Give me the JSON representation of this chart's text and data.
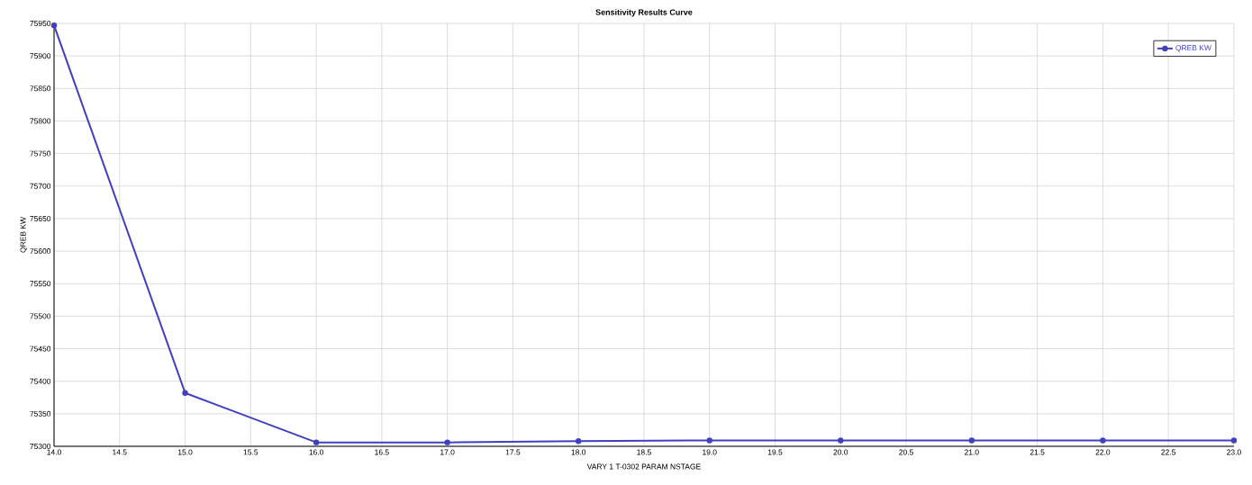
{
  "chart_data": {
    "type": "line",
    "title": "Sensitivity Results Curve",
    "xlabel": "VARY   1 T-0302 PARAM NSTAGE",
    "ylabel": "QREB KW",
    "x": [
      14,
      15,
      16,
      17,
      18,
      19,
      20,
      21,
      22,
      23
    ],
    "series": [
      {
        "name": "QREB KW",
        "color": "#4040c0",
        "values": [
          75947,
          75382,
          75306,
          75306,
          75308,
          75309,
          75309,
          75309,
          75309,
          75309
        ]
      }
    ],
    "xlim": [
      14,
      23
    ],
    "ylim": [
      75300,
      75950
    ],
    "xticks": [
      {
        "value": 14,
        "label": "14.0"
      },
      {
        "value": 14.5,
        "label": "14.5"
      },
      {
        "value": 15,
        "label": "15.0"
      },
      {
        "value": 15.5,
        "label": "15.5"
      },
      {
        "value": 16,
        "label": "16.0"
      },
      {
        "value": 16.5,
        "label": "16.5"
      },
      {
        "value": 17,
        "label": "17.0"
      },
      {
        "value": 17.5,
        "label": "17.5"
      },
      {
        "value": 18,
        "label": "18.0"
      },
      {
        "value": 18.5,
        "label": "18.5"
      },
      {
        "value": 19,
        "label": "19.0"
      },
      {
        "value": 19.5,
        "label": "19.5"
      },
      {
        "value": 20,
        "label": "20.0"
      },
      {
        "value": 20.5,
        "label": "20.5"
      },
      {
        "value": 21,
        "label": "21.0"
      },
      {
        "value": 21.5,
        "label": "21.5"
      },
      {
        "value": 22,
        "label": "22.0"
      },
      {
        "value": 22.5,
        "label": "22.5"
      },
      {
        "value": 23,
        "label": "23.0"
      }
    ],
    "yticks": [
      75300,
      75350,
      75400,
      75450,
      75500,
      75550,
      75600,
      75650,
      75700,
      75750,
      75800,
      75850,
      75900,
      75950
    ],
    "grid": true,
    "legend": "top right",
    "marker": "circle",
    "line_style": "solid"
  }
}
